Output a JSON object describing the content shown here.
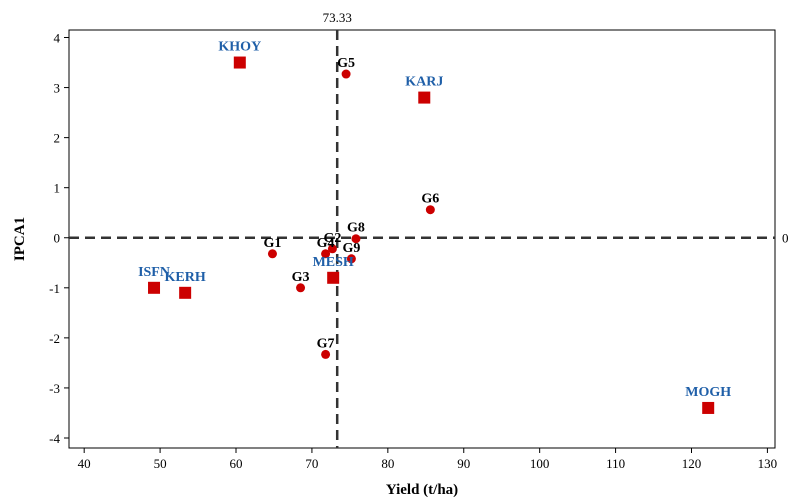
{
  "chart_data": {
    "type": "scatter",
    "xlabel": "Yield (t/ha)",
    "ylabel": "IPCA1",
    "xlim": [
      38,
      131
    ],
    "ylim": [
      -4.2,
      4.15
    ],
    "xticks": [
      40,
      50,
      60,
      70,
      80,
      90,
      100,
      110,
      120,
      130
    ],
    "yticks": [
      -4,
      -3,
      -2,
      -1,
      0,
      1,
      2,
      3,
      4
    ],
    "ref_lines": {
      "vertical": {
        "x": 73.33,
        "label": "73.33"
      },
      "horizontal": {
        "y": 0,
        "label": "0"
      }
    },
    "series": [
      {
        "marker": "circle",
        "color": "#cc0000",
        "label_color": "#000000",
        "points": [
          {
            "label": "G1",
            "x": 64.8,
            "y": -0.32
          },
          {
            "label": "G2",
            "x": 72.7,
            "y": -0.22
          },
          {
            "label": "G3",
            "x": 68.5,
            "y": -1.0
          },
          {
            "label": "G4",
            "x": 71.8,
            "y": -0.32
          },
          {
            "label": "G5",
            "x": 74.5,
            "y": 3.27
          },
          {
            "label": "G6",
            "x": 85.6,
            "y": 0.56
          },
          {
            "label": "G7",
            "x": 71.8,
            "y": -2.33
          },
          {
            "label": "G8",
            "x": 75.8,
            "y": -0.02
          },
          {
            "label": "G9",
            "x": 75.2,
            "y": -0.42
          }
        ]
      },
      {
        "marker": "square",
        "color": "#cc0000",
        "label_color": "#1f5fa8",
        "points": [
          {
            "label": "KHOY",
            "x": 60.5,
            "y": 3.5
          },
          {
            "label": "KARJ",
            "x": 84.8,
            "y": 2.8
          },
          {
            "label": "ISFN",
            "x": 49.2,
            "y": -1.0
          },
          {
            "label": "KERH",
            "x": 53.3,
            "y": -1.1
          },
          {
            "label": "MESH",
            "x": 72.8,
            "y": -0.8
          },
          {
            "label": "MOGH",
            "x": 122.2,
            "y": -3.4
          }
        ]
      }
    ]
  },
  "colors": {
    "marker": "#cc0000",
    "genotype_label": "#000000",
    "environment_label": "#1f5fa8"
  }
}
